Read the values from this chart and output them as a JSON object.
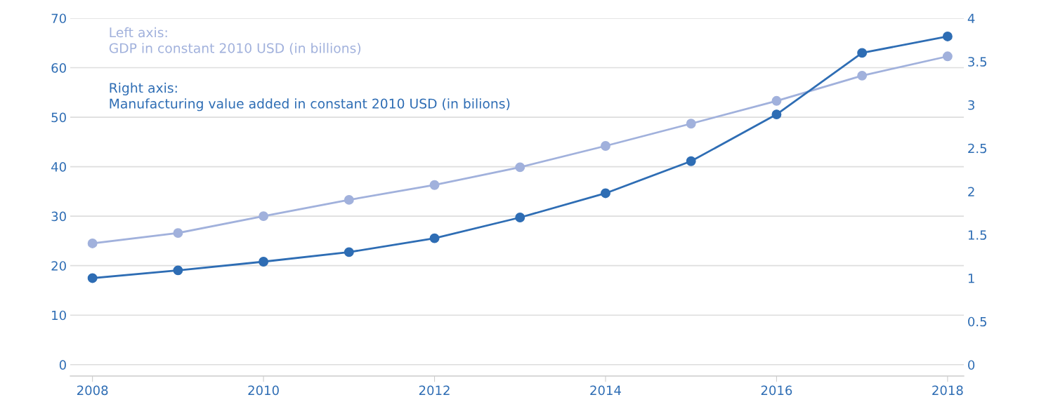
{
  "chart_data": {
    "type": "line",
    "x": [
      2008,
      2009,
      2010,
      2011,
      2012,
      2013,
      2014,
      2015,
      2016,
      2017,
      2018
    ],
    "series": [
      {
        "name": "Left axis:\nGDP in constant 2010 USD (in billions)",
        "color": "#a1b1dc",
        "values": [
          24.5,
          26.6,
          30.0,
          33.3,
          36.3,
          39.9,
          44.2,
          48.7,
          53.3,
          58.4,
          62.3
        ]
      },
      {
        "name": "Right axis:\nManufacturing value added in constant 2010 USD (in bilions)",
        "color": "#2e6db4",
        "axis": "y2",
        "values": [
          1.0,
          1.09,
          1.19,
          1.3,
          1.46,
          1.7,
          1.98,
          2.35,
          2.89,
          3.6,
          3.79
        ]
      }
    ],
    "xlim": [
      2007.74,
      2018.19
    ],
    "xticks": [
      2008,
      2010,
      2012,
      2014,
      2016,
      2018
    ],
    "ylim": [
      -2.3,
      70
    ],
    "yticks": [
      0,
      10,
      20,
      30,
      40,
      50,
      60,
      70
    ],
    "y2lim": [
      -0.13,
      4
    ],
    "y2ticks": [
      0,
      0.5,
      1,
      1.5,
      2,
      2.5,
      3,
      3.5,
      4
    ],
    "grid": "y",
    "marker": "circle",
    "line_style": "solid",
    "legend": "top left"
  }
}
